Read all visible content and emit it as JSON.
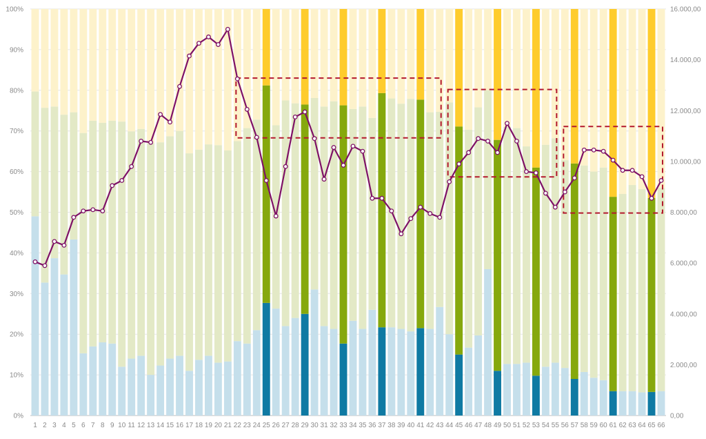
{
  "chart_data": {
    "type": "bar",
    "stacking": "percent (100% stacked columns)",
    "categories": [
      "1",
      "2",
      "3",
      "4",
      "5",
      "6",
      "7",
      "8",
      "9",
      "10",
      "11",
      "12",
      "13",
      "14",
      "15",
      "16",
      "17",
      "18",
      "19",
      "20",
      "21",
      "22",
      "23",
      "24",
      "25",
      "26",
      "27",
      "28",
      "29",
      "30",
      "31",
      "32",
      "33",
      "34",
      "35",
      "36",
      "37",
      "38",
      "39",
      "40",
      "41",
      "42",
      "43",
      "44",
      "45",
      "46",
      "47",
      "48",
      "49",
      "50",
      "51",
      "52",
      "53",
      "54",
      "55",
      "56",
      "57",
      "58",
      "59",
      "60",
      "61",
      "62",
      "63",
      "64",
      "65",
      "66"
    ],
    "highlighted_categories": [
      "25",
      "29",
      "33",
      "37",
      "41",
      "45",
      "49",
      "53",
      "57",
      "61",
      "65"
    ],
    "series": [
      {
        "type": "bar",
        "axis": "left",
        "color": "#c5dfeb",
        "highlight_color": "#0f7aa3",
        "values": [
          49,
          32.7,
          38.7,
          34.7,
          43.3,
          15.3,
          17,
          18,
          17.7,
          12,
          14,
          14.7,
          10,
          12.3,
          14,
          14.7,
          11,
          13.7,
          14.7,
          13,
          13.3,
          18.3,
          17.7,
          21,
          27.7,
          26.3,
          22,
          24,
          25,
          31,
          22,
          21.3,
          17.7,
          23.3,
          21.3,
          26,
          21.7,
          21.7,
          21.3,
          20.7,
          21.5,
          21.3,
          26.7,
          20,
          15,
          16.7,
          19.7,
          36,
          11,
          12.7,
          12.7,
          13,
          9.8,
          12,
          13,
          11.7,
          9,
          10.7,
          9.3,
          8.7,
          6,
          6,
          6,
          5.7,
          5.8,
          6
        ]
      },
      {
        "type": "bar",
        "axis": "left",
        "color": "#e3e9c6",
        "highlight_color": "#86a80d",
        "values": [
          30.7,
          43,
          37.3,
          39.3,
          31.3,
          54.2,
          55.5,
          54,
          54.8,
          60.3,
          55.9,
          55.8,
          57,
          54.9,
          54.7,
          55.3,
          53.5,
          51.7,
          52,
          53.5,
          51.9,
          49.2,
          53,
          51.8,
          53.5,
          45.1,
          55.5,
          52.8,
          51.5,
          47.1,
          54,
          56,
          58.6,
          52.1,
          54.7,
          47.2,
          57.6,
          56.3,
          55.4,
          57.2,
          56.2,
          53.3,
          48,
          57,
          56.1,
          53.6,
          56.1,
          44,
          56.8,
          58.3,
          58,
          53.2,
          51.2,
          54.6,
          55.2,
          51.1,
          53,
          50.8,
          50.7,
          52.3,
          47.8,
          48.5,
          50.7,
          50,
          47.7,
          50
        ]
      },
      {
        "type": "bar",
        "axis": "left",
        "color": "#fdf2cb",
        "highlight_color": "#fecc2d",
        "values": [
          20.3,
          24.3,
          24,
          26,
          25.4,
          30.5,
          27.5,
          28,
          27.5,
          27.7,
          30.1,
          29.5,
          33,
          32.8,
          31.3,
          30,
          35.5,
          34.6,
          33.3,
          33.5,
          34.8,
          32.5,
          29.3,
          27.2,
          18.8,
          28.6,
          22.5,
          23.2,
          23.5,
          21.9,
          24,
          22.7,
          23.7,
          24.6,
          24,
          26.8,
          20.7,
          22,
          23.3,
          22.1,
          22.3,
          25.4,
          25.3,
          23,
          28.9,
          29.7,
          24.2,
          20,
          32.2,
          29,
          29.3,
          33.8,
          39,
          33.4,
          31.8,
          37.2,
          38,
          38.5,
          40,
          39,
          46.2,
          45.5,
          43.3,
          44.3,
          46.5,
          44
        ]
      },
      {
        "type": "line",
        "axis": "right",
        "color": "#7e1166",
        "values": [
          6050,
          5900,
          6850,
          6700,
          7800,
          8050,
          8100,
          8050,
          9050,
          9250,
          9800,
          10800,
          10750,
          11850,
          11550,
          12950,
          14150,
          14650,
          14900,
          14600,
          15200,
          13250,
          12050,
          10950,
          9250,
          7850,
          9800,
          11750,
          11950,
          10900,
          9300,
          10550,
          9850,
          10600,
          10400,
          8550,
          8550,
          8050,
          7150,
          7750,
          8200,
          7950,
          7800,
          9200,
          9900,
          10350,
          10900,
          10800,
          10350,
          11500,
          10800,
          9600,
          9550,
          8750,
          8200,
          8800,
          9350,
          10450,
          10450,
          10400,
          10050,
          9650,
          9650,
          9400,
          8550,
          9250
        ]
      }
    ],
    "y_left": {
      "ticks": [
        "0%",
        "10%",
        "20%",
        "30%",
        "40%",
        "50%",
        "60%",
        "70%",
        "80%",
        "90%",
        "100%"
      ],
      "lim": [
        0,
        100
      ]
    },
    "y_right": {
      "ticks": [
        "0,00",
        "2.000,00",
        "4.000,00",
        "6.000,00",
        "8.000,00",
        "10.000,00",
        "12.000,00",
        "14.000,00",
        "16.000,00"
      ],
      "lim": [
        0,
        16000
      ]
    },
    "grid": true,
    "annotation_boxes": [
      {
        "style": "dashed",
        "color": "#b3182d",
        "x_from": "22",
        "x_to": "43",
        "y_from_pct": 68.3,
        "y_to_pct": 83
      },
      {
        "style": "dashed",
        "color": "#b3182d",
        "x_from": "44",
        "x_to": "55",
        "y_from_pct": 58.7,
        "y_to_pct": 80.2
      },
      {
        "style": "dashed",
        "color": "#b3182d",
        "x_from": "56",
        "x_to": "66",
        "y_from_pct": 49.8,
        "y_to_pct": 71.1
      }
    ],
    "title": "",
    "xlabel": "",
    "ylabel": ""
  }
}
